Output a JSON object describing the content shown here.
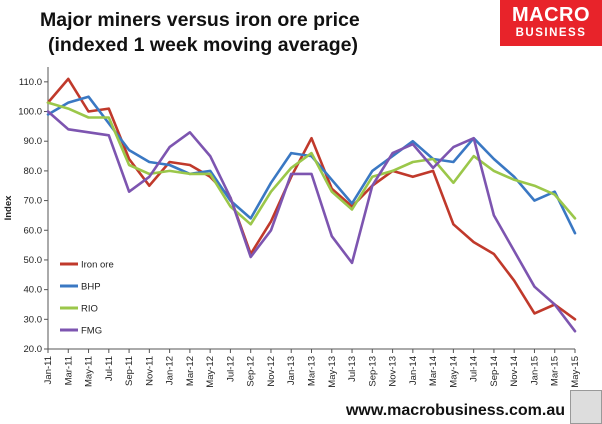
{
  "title_line1": "Major miners versus iron ore price",
  "title_line2": "(indexed 1 week moving average)",
  "logo_line1": "MACRO",
  "logo_line2": "BUSINESS",
  "website": "www.macrobusiness.com.au",
  "chart_data": {
    "type": "line",
    "title": "Major miners versus iron ore price (indexed 1 week moving average)",
    "xlabel": "",
    "ylabel": "Index",
    "ylim": [
      20,
      115
    ],
    "yticks": [
      "110.0",
      "100.0",
      "90.0",
      "80.0",
      "70.0",
      "60.0",
      "50.0",
      "40.0",
      "30.0",
      "20.0"
    ],
    "x": [
      "Jan-11",
      "Mar-11",
      "May-11",
      "Jul-11",
      "Sep-11",
      "Nov-11",
      "Jan-12",
      "Mar-12",
      "May-12",
      "Jul-12",
      "Sep-12",
      "Nov-12",
      "Jan-13",
      "Mar-13",
      "May-13",
      "Jul-13",
      "Sep-13",
      "Nov-13",
      "Jan-14",
      "Mar-14",
      "May-14",
      "Jul-14",
      "Sep-14",
      "Nov-14",
      "Jan-15",
      "Mar-15",
      "May-15"
    ],
    "legend_position": "lower-left",
    "grid": false,
    "series": [
      {
        "name": "Iron ore",
        "color": "#c0392b",
        "values": [
          103,
          111,
          100,
          101,
          84,
          75,
          83,
          82,
          78,
          71,
          52,
          63,
          78,
          91,
          74,
          68,
          75,
          80,
          78,
          80,
          62,
          56,
          52,
          43,
          32,
          35,
          30
        ]
      },
      {
        "name": "BHP",
        "color": "#3a78c3",
        "values": [
          99,
          103,
          105,
          96,
          87,
          83,
          82,
          79,
          80,
          70,
          64,
          76,
          86,
          85,
          77,
          69,
          80,
          85,
          90,
          84,
          83,
          91,
          84,
          78,
          70,
          73,
          59
        ]
      },
      {
        "name": "RIO",
        "color": "#9bc74a",
        "values": [
          103,
          101,
          98,
          98,
          82,
          79,
          80,
          79,
          79,
          68,
          62,
          73,
          81,
          86,
          73,
          67,
          78,
          80,
          83,
          84,
          76,
          85,
          80,
          77,
          75,
          72,
          64
        ]
      },
      {
        "name": "FMG",
        "color": "#7d55b0",
        "values": [
          100,
          94,
          93,
          92,
          73,
          78,
          88,
          93,
          85,
          71,
          51,
          60,
          79,
          79,
          58,
          49,
          75,
          86,
          89,
          81,
          88,
          91,
          65,
          53,
          41,
          35,
          26
        ]
      }
    ]
  }
}
